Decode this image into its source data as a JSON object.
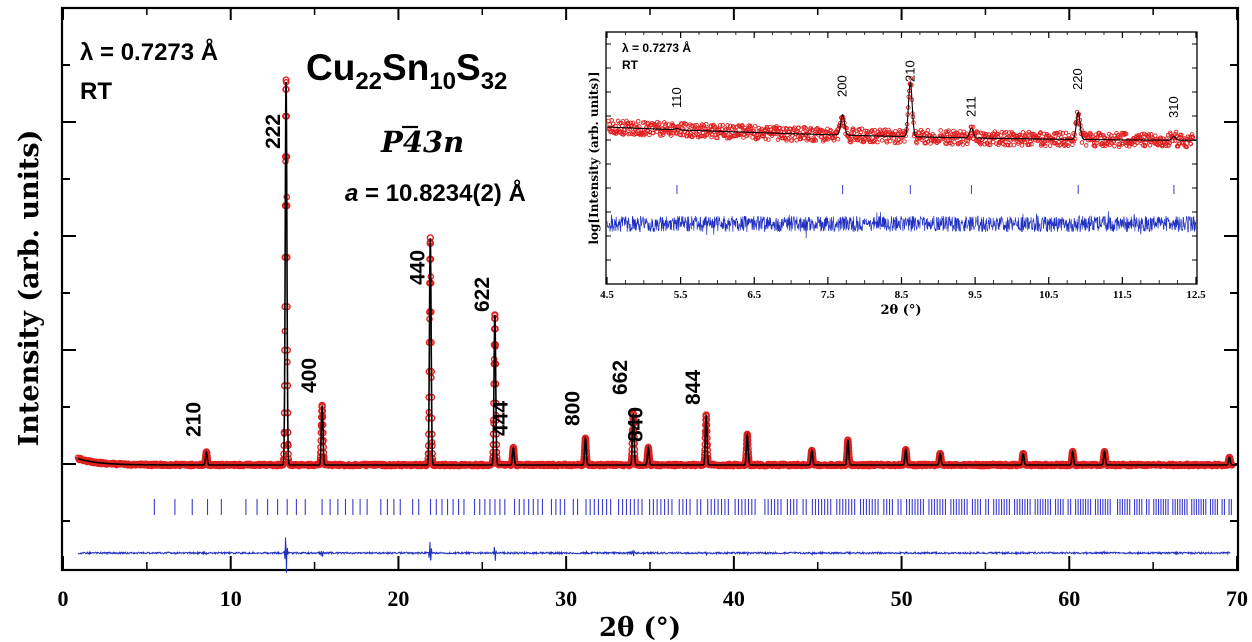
{
  "chart_data": [
    {
      "type": "line",
      "xlabel": "2θ (°)",
      "ylabel": "Intensity (arb. units)",
      "xlim": [
        0,
        70
      ],
      "x_ticks": [
        "0",
        "10",
        "20",
        "30",
        "40",
        "50",
        "60",
        "70"
      ],
      "annotations": {
        "wavelength": "λ = 0.7273 Å",
        "temperature": "RT",
        "formula": {
          "base1": "Cu",
          "sub1": "22",
          "base2": "Sn",
          "sub2": "10",
          "base3": "S",
          "sub3": "32"
        },
        "space_group": {
          "p": "P",
          "bar4": "4",
          "rest": "3n"
        },
        "lattice": {
          "var": "a",
          "value": " = 10.8234(2) Å"
        }
      },
      "peaks": [
        {
          "hkl": "210",
          "x": 8.55,
          "h": 0.034
        },
        {
          "hkl": "222",
          "x": 13.3,
          "h": 1.0
        },
        {
          "hkl": "400",
          "x": 15.45,
          "h": 0.155
        },
        {
          "hkl": "440",
          "x": 21.9,
          "h": 0.59
        },
        {
          "hkl": "622",
          "x": 25.75,
          "h": 0.39
        },
        {
          "hkl": "444",
          "x": 26.85,
          "h": 0.045
        },
        {
          "hkl": "800",
          "x": 31.15,
          "h": 0.07
        },
        {
          "hkl": "662",
          "x": 34.0,
          "h": 0.135
        },
        {
          "hkl": "840",
          "x": 34.9,
          "h": 0.045
        },
        {
          "hkl": "844",
          "x": 38.35,
          "h": 0.13
        },
        {
          "hkl": "",
          "x": 40.8,
          "h": 0.08
        },
        {
          "hkl": "",
          "x": 44.65,
          "h": 0.038
        },
        {
          "hkl": "",
          "x": 46.8,
          "h": 0.065
        },
        {
          "hkl": "",
          "x": 50.25,
          "h": 0.04
        },
        {
          "hkl": "",
          "x": 52.3,
          "h": 0.03
        },
        {
          "hkl": "",
          "x": 57.25,
          "h": 0.03
        },
        {
          "hkl": "",
          "x": 60.2,
          "h": 0.035
        },
        {
          "hkl": "",
          "x": 62.1,
          "h": 0.035
        },
        {
          "hkl": "",
          "x": 69.55,
          "h": 0.02
        }
      ],
      "series": [
        {
          "name": "observed",
          "color": "#e02020"
        },
        {
          "name": "calculated",
          "color": "#000000"
        },
        {
          "name": "Bragg positions",
          "color": "#3b3bd0"
        },
        {
          "name": "difference",
          "color": "#2030c0"
        }
      ]
    },
    {
      "type": "line",
      "xlabel": "2θ (°)",
      "ylabel": "log[Intensity (arb. units)]",
      "xlim": [
        4.5,
        12.5
      ],
      "x_ticks": [
        "4.5",
        "5.5",
        "6.5",
        "7.5",
        "8.5",
        "9.5",
        "10.5",
        "11.5",
        "12.5"
      ],
      "annotations": {
        "wavelength": "λ = 0.7273 Å",
        "temperature": "RT"
      },
      "peaks": [
        {
          "hkl": "110",
          "x": 5.45,
          "h": 0.02
        },
        {
          "hkl": "200",
          "x": 7.7,
          "h": 0.34
        },
        {
          "hkl": "210",
          "x": 8.62,
          "h": 0.9
        },
        {
          "hkl": "211",
          "x": 9.45,
          "h": 0.16
        },
        {
          "hkl": "220",
          "x": 10.9,
          "h": 0.45
        },
        {
          "hkl": "310",
          "x": 12.2,
          "h": 0.06
        }
      ]
    }
  ]
}
